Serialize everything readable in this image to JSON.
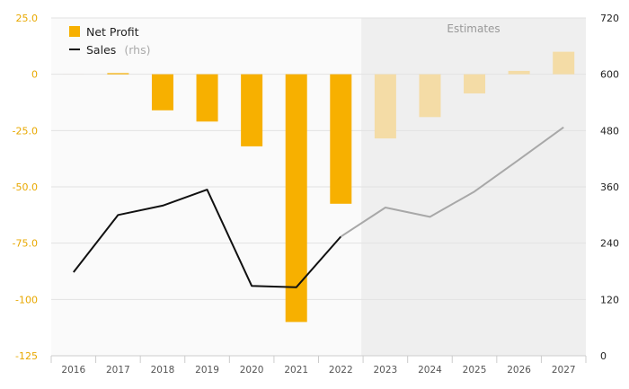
{
  "chart_data": {
    "type": "bar",
    "categories": [
      "2016",
      "2017",
      "2018",
      "2019",
      "2020",
      "2021",
      "2022",
      "2023",
      "2024",
      "2025",
      "2026",
      "2027"
    ],
    "series": [
      {
        "name": "Net Profit",
        "kind": "bar",
        "axis": "left",
        "color": "#f7b000",
        "estimate_color": "#f4dca6",
        "values": [
          0,
          0.5,
          -16,
          -21,
          -32,
          -110,
          -57.5,
          -28.5,
          -19,
          -8.5,
          1.5,
          10
        ]
      },
      {
        "name": "Sales",
        "name_suffix": "(rhs)",
        "kind": "line",
        "axis": "right",
        "color": "#111111",
        "estimate_color": "#a8a8a8",
        "values": [
          178,
          300,
          320,
          354,
          149,
          146,
          254,
          316,
          296,
          350,
          418,
          487
        ]
      }
    ],
    "estimate_start_index": 7,
    "estimate_label": "Estimates",
    "left_axis": {
      "ylim": [
        -125,
        25
      ],
      "ticks": [
        25,
        0,
        -25,
        -50,
        -75,
        -100,
        -125
      ],
      "tick_labels": [
        "25.0",
        "0",
        "-25.0",
        "-50.0",
        "-75.0",
        "-100",
        "-125"
      ],
      "color": "#e8a800"
    },
    "right_axis": {
      "ylim": [
        0,
        720
      ],
      "ticks": [
        720,
        600,
        480,
        360,
        240,
        120,
        0
      ],
      "tick_labels": [
        "720",
        "600",
        "480",
        "360",
        "240",
        "120",
        "0"
      ],
      "color": "#222222"
    },
    "grid": true,
    "legend": "top-left"
  }
}
